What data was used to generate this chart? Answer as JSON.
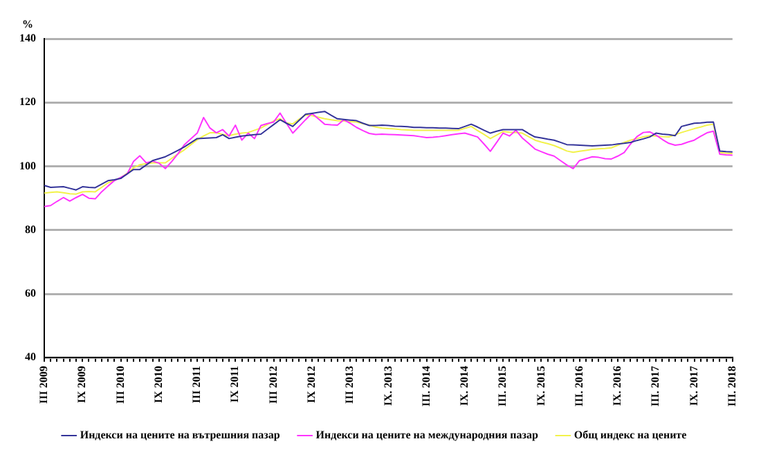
{
  "chart_data": {
    "type": "line",
    "ylabel": "%",
    "categories": [
      "III 2009",
      null,
      null,
      null,
      null,
      null,
      "IX 2009",
      null,
      null,
      null,
      null,
      null,
      "III 2010",
      null,
      null,
      null,
      null,
      null,
      "IX 2010",
      null,
      null,
      null,
      null,
      null,
      "III 2011",
      null,
      null,
      null,
      null,
      null,
      "IX 2011",
      null,
      null,
      null,
      null,
      null,
      "III 2012",
      null,
      null,
      null,
      null,
      null,
      "IX 2012",
      null,
      null,
      null,
      null,
      null,
      "III 2013",
      null,
      null,
      null,
      null,
      null,
      "IX. 2013",
      null,
      null,
      null,
      null,
      null,
      "III. 2014",
      null,
      null,
      null,
      null,
      null,
      "IX. 2014",
      null,
      null,
      null,
      null,
      null,
      "III. 2015",
      null,
      null,
      null,
      null,
      null,
      "IX. 2015",
      null,
      null,
      null,
      null,
      null,
      "III. 2016",
      null,
      null,
      null,
      null,
      null,
      "IX. 2016",
      null,
      null,
      null,
      null,
      null,
      "III. 2017",
      null,
      null,
      null,
      null,
      null,
      "IX. 2017",
      null,
      null,
      null,
      null,
      null,
      "III. 2018"
    ],
    "series": [
      {
        "name": "Индекси на цените на вътрешния пазар",
        "color": "#333399",
        "values": [
          94,
          93.4,
          93.5,
          93.6,
          93.1,
          92.6,
          93.6,
          93.4,
          93.3,
          94.4,
          95.5,
          95.8,
          96.2,
          97.6,
          99,
          99,
          100.4,
          101.8,
          102.4,
          103,
          104,
          105,
          106.1,
          107.4,
          108.7,
          108.8,
          108.9,
          109,
          109.9,
          108.7,
          109.1,
          109.5,
          109.7,
          109.9,
          110.1,
          111.6,
          113.1,
          114.6,
          113.5,
          112.5,
          114.4,
          116.3,
          116.6,
          116.9,
          117.2,
          116,
          114.9,
          114.7,
          114.5,
          114.3,
          113.5,
          112.8,
          112.8,
          112.9,
          112.8,
          112.6,
          112.5,
          112.4,
          112.2,
          112.2,
          112.1,
          112.1,
          112,
          112,
          111.9,
          111.8,
          112.5,
          113.2,
          112.3,
          111.3,
          110.4,
          111,
          111.5,
          111.5,
          111.5,
          111.5,
          110.3,
          109.2,
          108.9,
          108.5,
          108.2,
          107.5,
          106.8,
          106.7,
          106.6,
          106.5,
          106.4,
          106.5,
          106.6,
          106.7,
          107,
          107.2,
          107.5,
          108.1,
          108.6,
          109.2,
          110.4,
          110.1,
          109.9,
          109.6,
          112.5,
          113,
          113.5,
          113.6,
          113.8,
          113.9,
          104.8,
          104.6,
          104.5
        ]
      },
      {
        "name": "Индекси на цените на международния пазар",
        "color": "#ff33ff",
        "values": [
          87.4,
          87.7,
          89,
          90.2,
          89.1,
          90.2,
          91.2,
          90,
          89.8,
          92,
          93.8,
          95.5,
          96.5,
          97.6,
          101.5,
          103.3,
          101.1,
          101.6,
          101,
          99.3,
          101.5,
          104,
          106.8,
          108.6,
          110.4,
          115.3,
          112,
          110.5,
          111.5,
          109.5,
          112.9,
          108.2,
          110.4,
          108.7,
          112.8,
          113.4,
          113.9,
          116.7,
          113.5,
          110.4,
          112.5,
          114.6,
          116.6,
          114.9,
          113.2,
          113,
          112.9,
          114.6,
          113.5,
          112.2,
          111.2,
          110.3,
          110,
          110.1,
          110,
          109.9,
          109.8,
          109.7,
          109.6,
          109.3,
          109,
          109.1,
          109.3,
          109.6,
          109.9,
          110.2,
          110.4,
          109.8,
          109.2,
          107,
          104.7,
          107.5,
          110.4,
          109.5,
          111.3,
          108.9,
          107.2,
          105.4,
          104.6,
          103.8,
          103.2,
          101.8,
          100.4,
          99.3,
          101.8,
          102.4,
          103,
          102.8,
          102.4,
          102.3,
          103.2,
          104.3,
          107,
          109.3,
          110.6,
          110.8,
          109.8,
          108.4,
          107.2,
          106.6,
          106.9,
          107.6,
          108.2,
          109.4,
          110.5,
          111,
          103.8,
          103.6,
          103.5
        ]
      },
      {
        "name": "Общ индекс на цените",
        "color": "#f2f24a",
        "values": [
          91.6,
          91.8,
          92,
          91.7,
          91.4,
          91.3,
          92,
          92.1,
          92,
          93.4,
          94.8,
          95.6,
          96.4,
          97.8,
          99.5,
          100.5,
          100.8,
          101.1,
          101.1,
          101.1,
          102.5,
          103.9,
          105.2,
          106.8,
          108.3,
          109.5,
          110.5,
          110.5,
          110,
          109.6,
          110.1,
          110.4,
          110.6,
          111.3,
          112,
          113.1,
          114.2,
          114.9,
          113.6,
          113.3,
          114.8,
          116.1,
          115.9,
          115.4,
          114.9,
          114.6,
          114.3,
          114.2,
          114,
          113.9,
          113.4,
          112.9,
          112.3,
          112,
          111.8,
          111.7,
          111.5,
          111.4,
          111.3,
          111.3,
          111.3,
          111.3,
          111.3,
          111.3,
          111.3,
          111.3,
          111.9,
          112.5,
          111.2,
          110,
          108.7,
          109.8,
          110.9,
          110.7,
          110.6,
          110.4,
          109.3,
          108.2,
          107.6,
          107.1,
          106.5,
          105.7,
          104.8,
          104.4,
          104.7,
          105,
          105.3,
          105.5,
          105.6,
          105.8,
          106.6,
          107.5,
          108.2,
          108.7,
          109.2,
          109.6,
          109.5,
          109.3,
          109.2,
          109.9,
          110.6,
          111.2,
          111.8,
          112.3,
          112.9,
          113.2,
          104.3,
          104.1,
          104
        ]
      }
    ],
    "ylim": [
      40,
      140
    ],
    "yticks": [
      40,
      60,
      80,
      100,
      120,
      140
    ],
    "grid": "y",
    "legend": "bottom",
    "marker": "none",
    "line_style": "solid"
  }
}
